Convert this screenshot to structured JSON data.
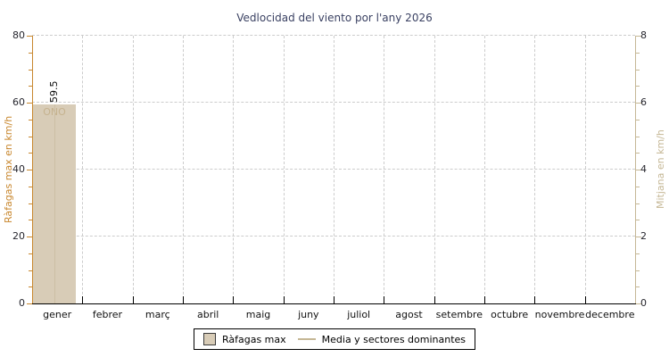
{
  "chart_data": {
    "type": "bar",
    "title": "Vedlocidad del viento por l'any 2026",
    "categories": [
      "gener",
      "febrer",
      "març",
      "abril",
      "maig",
      "juny",
      "juliol",
      "agost",
      "setembre",
      "octubre",
      "novembre",
      "decembre"
    ],
    "series": [
      {
        "name": "Ràfagas max",
        "values": [
          59.5,
          null,
          null,
          null,
          null,
          null,
          null,
          null,
          null,
          null,
          null,
          null
        ]
      },
      {
        "name": "Media y sectores dominantes",
        "values": [
          null,
          null,
          null,
          null,
          null,
          null,
          null,
          null,
          null,
          null,
          null,
          null
        ]
      }
    ],
    "bar_label": "59.5",
    "bar_direction": "ONO",
    "y_left": {
      "label": "Ràfagas max en km/h",
      "range": [
        0,
        80
      ],
      "ticks": [
        "80",
        "60",
        "40",
        "20",
        "0"
      ],
      "tick_step": 20,
      "minor_step": 5
    },
    "y_right": {
      "label": "Mitjana en km/h",
      "range": [
        0,
        8
      ],
      "ticks": [
        "8",
        "6",
        "4",
        "2",
        "0"
      ],
      "tick_step": 2,
      "minor_step": 0.5
    },
    "legend": [
      "Ràfagas max",
      "Media y sectores dominantes"
    ],
    "legend_position": "bottom-center",
    "grid": "dashed"
  },
  "colors": {
    "left_axis": "#c8872e",
    "right_axis": "#c5b795",
    "bar_fill": "#d8ccb7",
    "direction_text": "#c5b28e",
    "gridline": "#cccccc",
    "title_text": "#3b4263",
    "tick_text": "#26262e",
    "bottom_axis": "#000000"
  }
}
